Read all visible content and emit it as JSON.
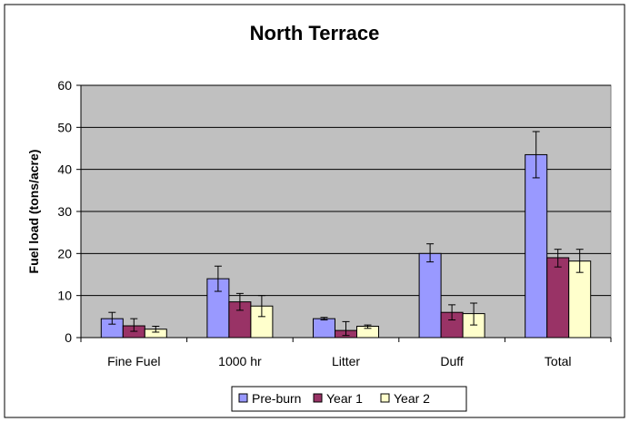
{
  "chart_data": {
    "type": "bar",
    "title": "North Terrace",
    "xlabel": "",
    "ylabel": "Fuel load (tons/acre)",
    "ylim": [
      0,
      60
    ],
    "yticks": [
      "0",
      "10",
      "20",
      "30",
      "40",
      "50",
      "60"
    ],
    "grid": true,
    "legend_position": "bottom",
    "categories": [
      "Fine Fuel",
      "1000 hr",
      "Litter",
      "Duff",
      "Total"
    ],
    "series": [
      {
        "name": "Pre-burn",
        "color": "#9999ff",
        "values": [
          4.5,
          14,
          4.5,
          20,
          43.5
        ],
        "error_low": [
          3.2,
          11,
          4.2,
          18,
          38
        ],
        "error_high": [
          6,
          17,
          4.8,
          22.3,
          49
        ]
      },
      {
        "name": "Year 1",
        "color": "#993366",
        "values": [
          2.8,
          8.5,
          1.7,
          6,
          19
        ],
        "error_low": [
          1.5,
          6.5,
          0.5,
          4.2,
          16.8
        ],
        "error_high": [
          4.5,
          10.5,
          3.8,
          7.8,
          21
        ]
      },
      {
        "name": "Year 2",
        "color": "#ffffcc",
        "values": [
          2,
          7.5,
          2.7,
          5.7,
          18.2
        ],
        "error_low": [
          1.3,
          5,
          2.2,
          3,
          15.5
        ],
        "error_high": [
          2.7,
          10,
          3,
          8.2,
          21
        ]
      }
    ]
  }
}
